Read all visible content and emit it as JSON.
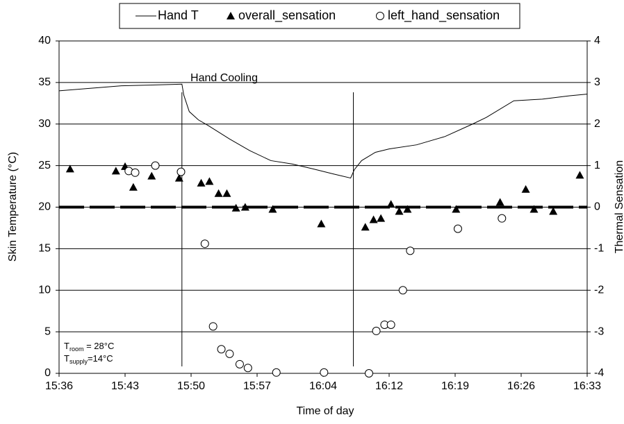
{
  "chart_data": {
    "type": "line-scatter",
    "x_label": "Time of day",
    "y_label": "Skin Temperature (°C)",
    "y2_label": "Thermal Sensation",
    "xlim": [
      936,
      993.6
    ],
    "xticks": [
      {
        "value": 936,
        "label": "15:36"
      },
      {
        "value": 943.2,
        "label": "15:43"
      },
      {
        "value": 950.4,
        "label": "15:50"
      },
      {
        "value": 957.6,
        "label": "15:57"
      },
      {
        "value": 964.8,
        "label": "16:04"
      },
      {
        "value": 972,
        "label": "16:12"
      },
      {
        "value": 979.2,
        "label": "16:19"
      },
      {
        "value": 986.4,
        "label": "16:26"
      },
      {
        "value": 993.6,
        "label": "16:33"
      }
    ],
    "ylim": [
      0,
      40
    ],
    "yticks": [
      0,
      5,
      10,
      15,
      20,
      25,
      30,
      35,
      40
    ],
    "y2lim": [
      -4,
      4
    ],
    "y2ticks": [
      -4,
      -3,
      -2,
      -1,
      0,
      1,
      2,
      3,
      4
    ],
    "grid": true,
    "legend": "top",
    "hline": {
      "value": 0,
      "axis": "y2",
      "style": "dashed"
    },
    "vlines": [
      949.4,
      968.1
    ],
    "annotations": [
      {
        "text": "Hand Cooling",
        "x": 954,
        "y": 35
      },
      {
        "lines": [
          {
            "text": "T",
            "sub": "room",
            "rest": " = 28°C"
          },
          {
            "text": "T",
            "sub": "supply",
            "rest": "=14°C"
          }
        ]
      }
    ],
    "series": [
      {
        "name": "Hand T",
        "marker": "line",
        "color": "#000000",
        "axis": "y",
        "x": [
          936.0,
          939.4,
          942.8,
          946.2,
          949.4,
          949.6,
          950.2,
          951.2,
          952.3,
          954.6,
          956.8,
          959.1,
          961.4,
          963.7,
          965.9,
          967.8,
          968.2,
          969.0,
          970.5,
          972.0,
          975.0,
          978.1,
          981.1,
          982.6,
          985.6,
          988.7,
          991.7,
          993.6
        ],
        "values": [
          34.0,
          34.3,
          34.6,
          34.7,
          34.8,
          33.5,
          31.5,
          30.5,
          29.8,
          28.2,
          26.8,
          25.6,
          25.2,
          24.6,
          24.0,
          23.5,
          24.5,
          25.6,
          26.6,
          27.0,
          27.5,
          28.5,
          30.0,
          30.8,
          32.8,
          33.0,
          33.4,
          33.6
        ]
      },
      {
        "name": "overall_sensation",
        "marker": "triangle",
        "color": "#000000",
        "axis": "y2",
        "x": [
          937.2,
          942.2,
          943.2,
          944.1,
          946.1,
          949.1,
          951.5,
          952.4,
          953.4,
          954.3,
          955.3,
          956.3,
          959.3,
          964.6,
          969.4,
          970.3,
          971.1,
          972.2,
          973.1,
          974.0,
          979.3,
          984.1,
          986.9,
          987.8,
          989.9,
          992.8
        ],
        "values": [
          0.92,
          0.87,
          0.98,
          0.48,
          0.75,
          0.7,
          0.58,
          0.62,
          0.33,
          0.33,
          -0.02,
          0.0,
          -0.05,
          -0.4,
          -0.48,
          -0.3,
          -0.27,
          0.07,
          -0.1,
          -0.05,
          -0.05,
          0.12,
          0.43,
          -0.05,
          -0.1,
          0.77
        ]
      },
      {
        "name": "left_hand_sensation",
        "marker": "circle",
        "color": "#000000",
        "axis": "y2",
        "x": [
          943.6,
          944.3,
          946.5,
          949.3,
          951.9,
          952.8,
          953.7,
          954.6,
          955.7,
          956.6,
          959.7,
          964.9,
          969.8,
          970.6,
          971.5,
          972.2,
          973.5,
          974.3,
          979.5,
          984.3
        ],
        "values": [
          0.87,
          0.83,
          1.0,
          0.85,
          -0.88,
          -2.87,
          -3.42,
          -3.53,
          -3.78,
          -3.87,
          -3.98,
          -3.98,
          -4.0,
          -2.98,
          -2.83,
          -2.83,
          -2.0,
          -1.05,
          -0.52,
          -0.27
        ]
      }
    ]
  }
}
